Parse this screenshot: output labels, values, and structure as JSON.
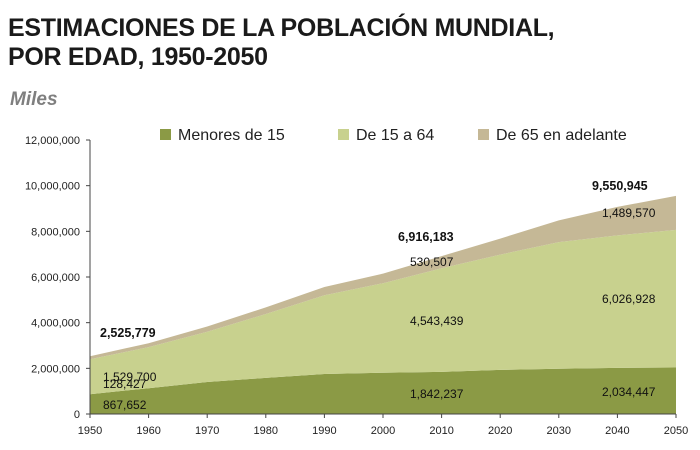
{
  "title_line1": "ESTIMACIONES DE LA POBLACIÓN MUNDIAL,",
  "title_line2": "POR EDAD, 1950-2050",
  "subtitle": "Miles",
  "chart_data": {
    "type": "area",
    "stacked": true,
    "title": "ESTIMACIONES DE LA POBLACIÓN MUNDIAL, POR EDAD, 1950-2050",
    "subtitle": "Miles",
    "x": [
      1950,
      1960,
      1970,
      1980,
      1990,
      2000,
      2010,
      2020,
      2030,
      2040,
      2050
    ],
    "xlim": [
      1950,
      2050
    ],
    "ylim": [
      0,
      12000000
    ],
    "yticks": [
      0,
      2000000,
      4000000,
      6000000,
      8000000,
      10000000,
      12000000
    ],
    "ytick_labels": [
      "0",
      "2,000,000",
      "4,000,000",
      "6,000,000",
      "8,000,000",
      "10,000,000",
      "12,000,000"
    ],
    "legend_position": "top",
    "series": [
      {
        "name": "Menores de 15",
        "color": "#8b9a45",
        "values": [
          867652,
          1130000,
          1400000,
          1580000,
          1750000,
          1810000,
          1842237,
          1930000,
          1980000,
          2020000,
          2034447
        ]
      },
      {
        "name": "De 15 a 64",
        "color": "#c8d18e",
        "values": [
          1529700,
          1800000,
          2200000,
          2800000,
          3450000,
          3920000,
          4543439,
          5050000,
          5550000,
          5800000,
          6026928
        ]
      },
      {
        "name": "De 65 en adelante",
        "color": "#c5b896",
        "values": [
          128427,
          170000,
          230000,
          290000,
          360000,
          420000,
          530507,
          700000,
          950000,
          1250000,
          1489570
        ]
      }
    ],
    "annotations": [
      {
        "x": 1950,
        "series": "total",
        "text": "2,525,779"
      },
      {
        "x": 1950,
        "series": "De 65 en adelante",
        "text": "128,427"
      },
      {
        "x": 1950,
        "series": "De 15 a 64",
        "text": "1,529,700"
      },
      {
        "x": 1950,
        "series": "Menores de 15",
        "text": "867,652"
      },
      {
        "x": 2010,
        "series": "total",
        "text": "6,916,183"
      },
      {
        "x": 2010,
        "series": "De 65 en adelante",
        "text": "530,507"
      },
      {
        "x": 2010,
        "series": "De 15 a 64",
        "text": "4,543,439"
      },
      {
        "x": 2010,
        "series": "Menores de 15",
        "text": "1,842,237"
      },
      {
        "x": 2050,
        "series": "total",
        "text": "9,550,945"
      },
      {
        "x": 2050,
        "series": "De 65 en adelante",
        "text": "1,489,570"
      },
      {
        "x": 2050,
        "series": "De 15 a 64",
        "text": "6,026,928"
      },
      {
        "x": 2050,
        "series": "Menores de 15",
        "text": "2,034,447"
      }
    ]
  }
}
